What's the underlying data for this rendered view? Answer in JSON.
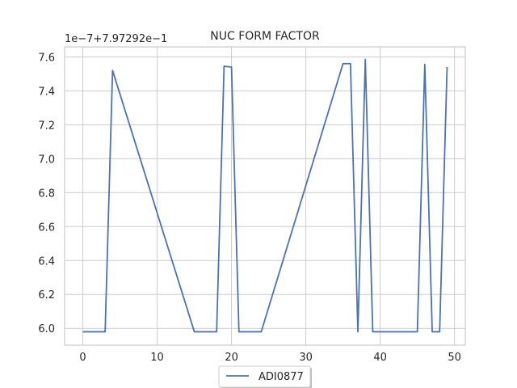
{
  "chart_data": {
    "type": "line",
    "title": "NUC FORM FACTOR",
    "y_offset_label": "1e−7+7.97292e−1",
    "xlabel": "",
    "ylabel": "",
    "xlim": [
      -2.45,
      51.45
    ],
    "ylim": [
      5.901,
      7.659
    ],
    "x_ticks": [
      0,
      10,
      20,
      30,
      40,
      50
    ],
    "x_tick_labels": [
      "0",
      "10",
      "20",
      "30",
      "40",
      "50"
    ],
    "y_ticks": [
      6.0,
      6.2,
      6.4,
      6.6,
      6.8,
      7.0,
      7.2,
      7.4,
      7.6
    ],
    "y_tick_labels": [
      "6.0",
      "6.2",
      "6.4",
      "6.6",
      "6.8",
      "7.0",
      "7.2",
      "7.4",
      "7.6"
    ],
    "grid": true,
    "legend_position": "bottom-center",
    "series": [
      {
        "name": "ADI0877",
        "color": "#4c72b0",
        "x": [
          0,
          3,
          4,
          15,
          18,
          19,
          20,
          21,
          24,
          35,
          36,
          37,
          38,
          39,
          45,
          46,
          47,
          48,
          49
        ],
        "y": [
          5.98,
          5.98,
          7.52,
          5.98,
          5.98,
          7.545,
          7.54,
          5.98,
          5.98,
          7.56,
          7.56,
          5.98,
          7.585,
          5.98,
          5.98,
          7.555,
          5.98,
          5.98,
          7.54
        ]
      }
    ]
  }
}
